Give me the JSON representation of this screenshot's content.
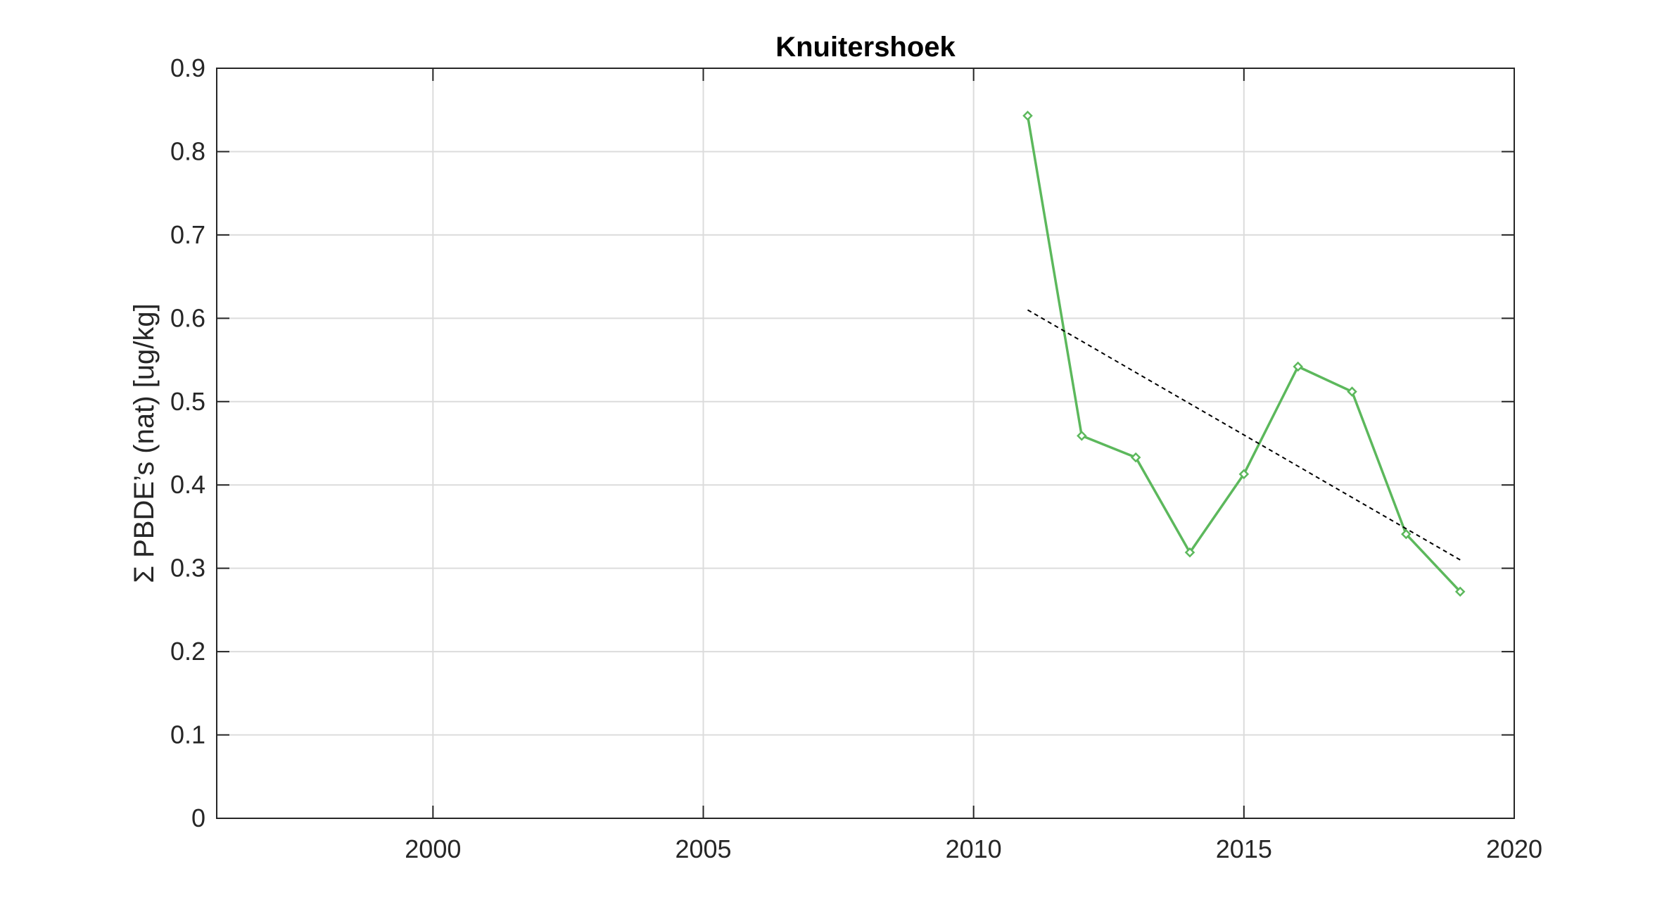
{
  "chart_data": {
    "type": "line",
    "title": "Knuitershoek",
    "xlabel": "",
    "ylabel": "Σ PBDE’s (nat) [ug/kg]",
    "xlim": [
      1996,
      2020
    ],
    "ylim": [
      0,
      0.9
    ],
    "xticks": [
      2000,
      2005,
      2010,
      2015,
      2020
    ],
    "yticks": [
      0,
      0.1,
      0.2,
      0.3,
      0.4,
      0.5,
      0.6,
      0.7,
      0.8,
      0.9
    ],
    "xtick_labels": [
      "2000",
      "2005",
      "2010",
      "2015",
      "2020"
    ],
    "ytick_labels": [
      "0",
      "0.1",
      "0.2",
      "0.3",
      "0.4",
      "0.5",
      "0.6",
      "0.7",
      "0.8",
      "0.9"
    ],
    "grid": true,
    "series": [
      {
        "style": "solid-line-with-diamond-markers",
        "color": "#5cb85c",
        "x": [
          2011,
          2012,
          2013,
          2014,
          2015,
          2016,
          2017,
          2018,
          2019
        ],
        "y": [
          0.843,
          0.459,
          0.433,
          0.319,
          0.413,
          0.542,
          0.512,
          0.341,
          0.272
        ]
      },
      {
        "style": "dashed-trend-line",
        "color": "#000000",
        "x": [
          2011,
          2019
        ],
        "y": [
          0.61,
          0.31
        ]
      }
    ]
  }
}
